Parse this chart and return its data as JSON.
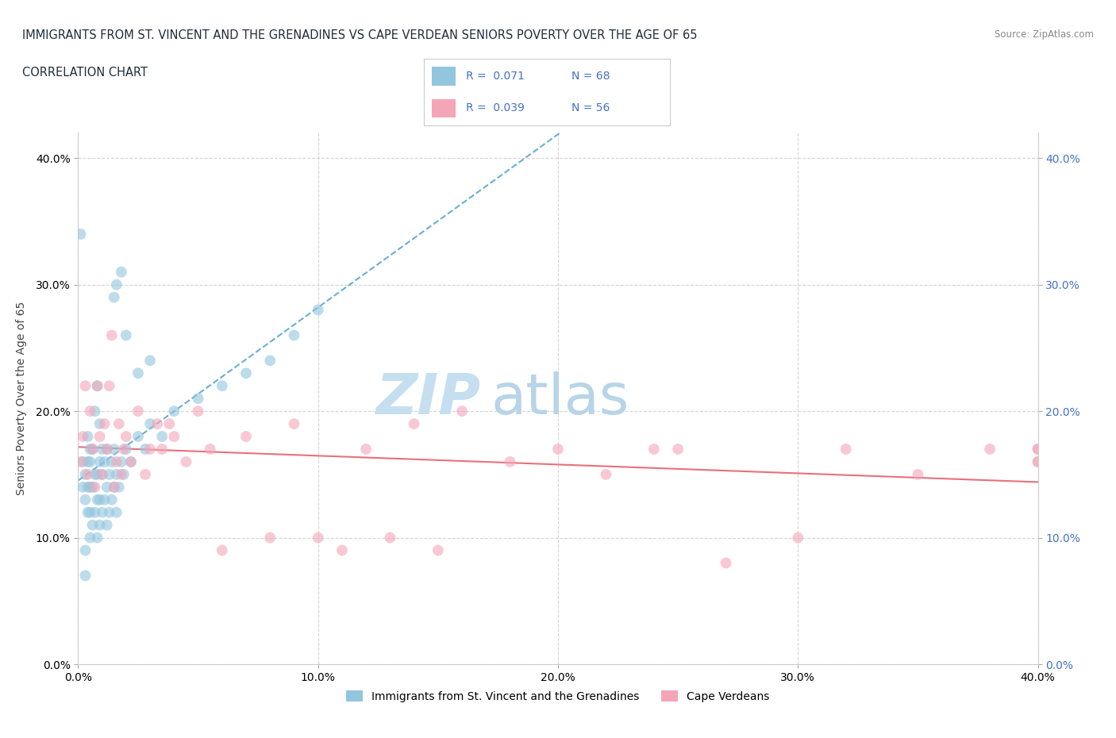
{
  "title_line1": "IMMIGRANTS FROM ST. VINCENT AND THE GRENADINES VS CAPE VERDEAN SENIORS POVERTY OVER THE AGE OF 65",
  "title_line2": "CORRELATION CHART",
  "source_text": "Source: ZipAtlas.com",
  "ylabel": "Seniors Poverty Over the Age of 65",
  "xlim": [
    0.0,
    0.4
  ],
  "ylim": [
    0.0,
    0.42
  ],
  "ytick_vals": [
    0.0,
    0.1,
    0.2,
    0.3,
    0.4
  ],
  "xtick_vals": [
    0.0,
    0.1,
    0.2,
    0.3,
    0.4
  ],
  "watermark_zip": "ZIP",
  "watermark_atlas": "atlas",
  "legend_r1": "0.071",
  "legend_n1": "68",
  "legend_r2": "0.039",
  "legend_n2": "56",
  "color_blue": "#92c5de",
  "color_pink": "#f4a6b8",
  "trendline1_color": "#6aaed6",
  "trendline2_color": "#e8707a",
  "grid_color": "#d0d0d0",
  "background_color": "#ffffff",
  "scatter1_x": [
    0.001,
    0.002,
    0.002,
    0.003,
    0.003,
    0.003,
    0.003,
    0.004,
    0.004,
    0.004,
    0.004,
    0.005,
    0.005,
    0.005,
    0.005,
    0.005,
    0.006,
    0.006,
    0.006,
    0.007,
    0.007,
    0.007,
    0.008,
    0.008,
    0.008,
    0.008,
    0.009,
    0.009,
    0.009,
    0.009,
    0.01,
    0.01,
    0.01,
    0.011,
    0.011,
    0.012,
    0.012,
    0.012,
    0.013,
    0.013,
    0.014,
    0.014,
    0.015,
    0.015,
    0.016,
    0.016,
    0.017,
    0.018,
    0.019,
    0.02,
    0.022,
    0.025,
    0.028,
    0.03,
    0.035,
    0.04,
    0.05,
    0.06,
    0.07,
    0.08,
    0.09,
    0.1,
    0.015,
    0.016,
    0.018,
    0.02,
    0.025,
    0.03
  ],
  "scatter1_y": [
    0.34,
    0.14,
    0.16,
    0.13,
    0.15,
    0.07,
    0.09,
    0.12,
    0.14,
    0.16,
    0.18,
    0.1,
    0.12,
    0.14,
    0.16,
    0.17,
    0.11,
    0.14,
    0.17,
    0.12,
    0.15,
    0.2,
    0.1,
    0.13,
    0.15,
    0.22,
    0.11,
    0.13,
    0.16,
    0.19,
    0.12,
    0.15,
    0.17,
    0.13,
    0.16,
    0.11,
    0.14,
    0.17,
    0.12,
    0.15,
    0.13,
    0.16,
    0.14,
    0.17,
    0.12,
    0.15,
    0.14,
    0.16,
    0.15,
    0.17,
    0.16,
    0.18,
    0.17,
    0.19,
    0.18,
    0.2,
    0.21,
    0.22,
    0.23,
    0.24,
    0.26,
    0.28,
    0.29,
    0.3,
    0.31,
    0.26,
    0.23,
    0.24
  ],
  "scatter2_x": [
    0.001,
    0.002,
    0.003,
    0.004,
    0.005,
    0.006,
    0.007,
    0.008,
    0.009,
    0.01,
    0.011,
    0.012,
    0.013,
    0.014,
    0.015,
    0.016,
    0.017,
    0.018,
    0.019,
    0.02,
    0.022,
    0.025,
    0.028,
    0.03,
    0.033,
    0.035,
    0.038,
    0.04,
    0.045,
    0.05,
    0.055,
    0.06,
    0.07,
    0.08,
    0.09,
    0.1,
    0.11,
    0.12,
    0.13,
    0.14,
    0.15,
    0.16,
    0.18,
    0.2,
    0.22,
    0.24,
    0.25,
    0.27,
    0.3,
    0.32,
    0.35,
    0.38,
    0.4,
    0.4,
    0.4,
    0.4
  ],
  "scatter2_y": [
    0.16,
    0.18,
    0.22,
    0.15,
    0.2,
    0.17,
    0.14,
    0.22,
    0.18,
    0.15,
    0.19,
    0.17,
    0.22,
    0.26,
    0.14,
    0.16,
    0.19,
    0.15,
    0.17,
    0.18,
    0.16,
    0.2,
    0.15,
    0.17,
    0.19,
    0.17,
    0.19,
    0.18,
    0.16,
    0.2,
    0.17,
    0.09,
    0.18,
    0.1,
    0.19,
    0.1,
    0.09,
    0.17,
    0.1,
    0.19,
    0.09,
    0.2,
    0.16,
    0.17,
    0.15,
    0.17,
    0.17,
    0.08,
    0.1,
    0.17,
    0.15,
    0.17,
    0.16,
    0.17,
    0.16,
    0.17
  ],
  "label1": "Immigrants from St. Vincent and the Grenadines",
  "label2": "Cape Verdeans",
  "title_color": "#1f2d3d",
  "axis_label_fontsize": 10,
  "tick_fontsize": 10,
  "watermark_fontsize": 52,
  "watermark_color_zip": "#c5dff0",
  "watermark_color_atlas": "#b8d4e8",
  "right_ytick_color": "#4472c4",
  "legend_box_color": "#4472c4"
}
